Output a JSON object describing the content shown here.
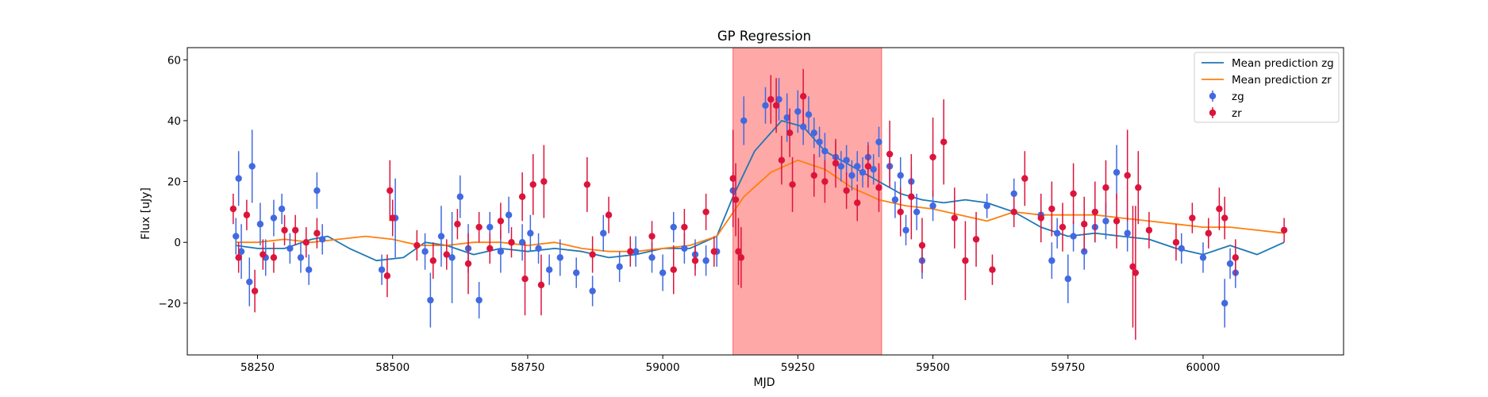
{
  "chart_data": {
    "type": "scatter",
    "title": "GP Regression",
    "xlabel": "MJD",
    "ylabel": "Flux [uJy]",
    "xlim": [
      58120,
      60260
    ],
    "ylim": [
      -37,
      64
    ],
    "xticks": [
      58250,
      58500,
      58750,
      59000,
      59250,
      59500,
      59750,
      60000
    ],
    "yticks": [
      -20,
      0,
      20,
      40,
      60
    ],
    "grid": false,
    "legend_position": "top-right",
    "shaded_region": {
      "x_start": 59130,
      "x_end": 59405,
      "color": "#ff9999"
    },
    "series": [
      {
        "name": "Mean prediction zg",
        "kind": "line",
        "color": "#1f77b4",
        "x": [
          58210,
          58250,
          58300,
          58350,
          58380,
          58420,
          58470,
          58520,
          58560,
          58600,
          58650,
          58700,
          58750,
          58800,
          58850,
          58900,
          58950,
          59000,
          59050,
          59100,
          59130,
          59170,
          59220,
          59260,
          59300,
          59350,
          59400,
          59440,
          59480,
          59520,
          59560,
          59600,
          59650,
          59700,
          59750,
          59800,
          59850,
          59900,
          59950,
          60000,
          60050,
          60100,
          60150
        ],
        "y": [
          -1,
          -2,
          -2,
          1,
          2,
          -2,
          -6,
          -5,
          0,
          -1,
          -4,
          -2,
          -3,
          -2,
          -3,
          -5,
          -4,
          -2,
          -2,
          2,
          15,
          30,
          40,
          38,
          30,
          25,
          20,
          16,
          14,
          13,
          14,
          13,
          10,
          5,
          2,
          3,
          2,
          1,
          -2,
          -4,
          -1,
          -4,
          0
        ]
      },
      {
        "name": "Mean prediction zr",
        "kind": "line",
        "color": "#ff7f0e",
        "x": [
          58210,
          58250,
          58300,
          58350,
          58400,
          58450,
          58500,
          58550,
          58600,
          58650,
          58700,
          58750,
          58800,
          58850,
          58900,
          58950,
          59000,
          59050,
          59100,
          59150,
          59200,
          59250,
          59300,
          59350,
          59400,
          59450,
          59500,
          59550,
          59600,
          59650,
          59700,
          59750,
          59800,
          59850,
          59900,
          59950,
          60000,
          60050,
          60100,
          60150
        ],
        "y": [
          0,
          0,
          1,
          0,
          1,
          2,
          1,
          -1,
          -1,
          0,
          0,
          -1,
          0,
          -2,
          -3,
          -3,
          -2,
          -1,
          2,
          15,
          23,
          27,
          24,
          18,
          14,
          12,
          11,
          9,
          7,
          10,
          9,
          9,
          9,
          8,
          7,
          6,
          5,
          5,
          4,
          3
        ]
      },
      {
        "name": "zg",
        "kind": "errorbar",
        "color": "#4169e1",
        "x": [
          58210,
          58215,
          58220,
          58235,
          58240,
          58255,
          58265,
          58280,
          58295,
          58310,
          58330,
          58345,
          58360,
          58370,
          58480,
          58505,
          58560,
          58570,
          58590,
          58610,
          58625,
          58640,
          58660,
          58680,
          58700,
          58715,
          58740,
          58755,
          58770,
          58790,
          58810,
          58840,
          58870,
          58890,
          58920,
          58950,
          58980,
          59000,
          59020,
          59040,
          59060,
          59080,
          59100,
          59130,
          59150,
          59190,
          59215,
          59230,
          59250,
          59260,
          59270,
          59280,
          59290,
          59300,
          59320,
          59330,
          59340,
          59350,
          59360,
          59370,
          59380,
          59390,
          59400,
          59420,
          59430,
          59440,
          59450,
          59460,
          59470,
          59480,
          59500,
          59600,
          59650,
          59700,
          59720,
          59730,
          59750,
          59760,
          59780,
          59800,
          59820,
          59840,
          59860,
          59960,
          60000,
          60040,
          60050,
          60060
        ],
        "y": [
          2,
          21,
          -3,
          -13,
          25,
          6,
          -5,
          8,
          11,
          -2,
          -5,
          -9,
          17,
          1,
          -9,
          8,
          -3,
          -19,
          2,
          -5,
          15,
          -2,
          -19,
          5,
          -3,
          9,
          0,
          3,
          -2,
          -9,
          -5,
          -10,
          -16,
          3,
          -8,
          -3,
          -5,
          -10,
          5,
          -2,
          -4,
          -6,
          -3,
          17,
          40,
          45,
          47,
          41,
          43,
          38,
          42,
          36,
          33,
          30,
          28,
          25,
          27,
          22,
          25,
          23,
          28,
          24,
          33,
          25,
          14,
          22,
          4,
          20,
          10,
          -6,
          12,
          12,
          16,
          9,
          -6,
          3,
          -12,
          2,
          -3,
          5,
          7,
          23,
          3,
          -2,
          -5,
          -20,
          -7,
          -10
        ],
        "err": [
          6,
          9,
          9,
          8,
          12,
          7,
          6,
          6,
          5,
          5,
          5,
          5,
          6,
          5,
          5,
          13,
          6,
          9,
          10,
          15,
          7,
          8,
          6,
          5,
          7,
          6,
          6,
          6,
          5,
          5,
          6,
          5,
          5,
          6,
          5,
          5,
          5,
          6,
          5,
          5,
          5,
          5,
          5,
          6,
          8,
          6,
          7,
          8,
          7,
          6,
          6,
          5,
          5,
          6,
          5,
          5,
          5,
          5,
          5,
          5,
          5,
          5,
          5,
          5,
          6,
          6,
          5,
          5,
          6,
          6,
          5,
          4,
          5,
          5,
          6,
          5,
          8,
          5,
          6,
          5,
          6,
          9,
          6,
          5,
          5,
          8,
          5,
          5
        ]
      },
      {
        "name": "zr",
        "kind": "errorbar",
        "color": "#dc143c",
        "x": [
          58205,
          58215,
          58230,
          58245,
          58260,
          58280,
          58300,
          58320,
          58340,
          58360,
          58490,
          58495,
          58500,
          58545,
          58575,
          58600,
          58620,
          58640,
          58660,
          58680,
          58700,
          58720,
          58740,
          58745,
          58760,
          58775,
          58780,
          58860,
          58870,
          58900,
          58940,
          58980,
          59020,
          59040,
          59060,
          59080,
          59095,
          59130,
          59135,
          59140,
          59145,
          59200,
          59210,
          59220,
          59235,
          59240,
          59260,
          59280,
          59300,
          59320,
          59340,
          59360,
          59380,
          59400,
          59420,
          59440,
          59460,
          59480,
          59500,
          59520,
          59540,
          59560,
          59580,
          59610,
          59650,
          59670,
          59700,
          59720,
          59740,
          59760,
          59780,
          59800,
          59820,
          59840,
          59860,
          59870,
          59875,
          59880,
          59900,
          59950,
          59980,
          60010,
          60030,
          60040,
          60060,
          60150
        ],
        "y": [
          11,
          -5,
          9,
          -16,
          -4,
          -5,
          4,
          4,
          0,
          3,
          -11,
          17,
          8,
          -1,
          -6,
          -4,
          6,
          -7,
          5,
          -2,
          7,
          0,
          15,
          -12,
          19,
          -14,
          20,
          19,
          -4,
          9,
          -3,
          2,
          -9,
          5,
          -6,
          10,
          -3,
          21,
          14,
          -3,
          -5,
          47,
          45,
          27,
          36,
          19,
          48,
          22,
          20,
          26,
          17,
          13,
          25,
          18,
          29,
          10,
          15,
          -1,
          28,
          33,
          8,
          -6,
          1,
          -9,
          10,
          21,
          8,
          11,
          5,
          16,
          6,
          10,
          18,
          7,
          22,
          -8,
          -10,
          18,
          4,
          0,
          8,
          3,
          11,
          8,
          -5,
          4
        ],
        "err": [
          5,
          5,
          5,
          7,
          5,
          5,
          5,
          5,
          5,
          5,
          7,
          10,
          6,
          5,
          6,
          5,
          5,
          10,
          5,
          5,
          6,
          5,
          8,
          12,
          10,
          10,
          12,
          9,
          6,
          6,
          5,
          5,
          8,
          6,
          5,
          6,
          5,
          16,
          12,
          11,
          10,
          8,
          9,
          8,
          8,
          9,
          9,
          7,
          7,
          8,
          6,
          6,
          7,
          8,
          11,
          8,
          14,
          9,
          13,
          14,
          10,
          13,
          9,
          5,
          5,
          9,
          8,
          9,
          8,
          10,
          9,
          10,
          9,
          9,
          15,
          20,
          22,
          12,
          6,
          6,
          5,
          5,
          7,
          7,
          6,
          4
        ]
      }
    ]
  }
}
